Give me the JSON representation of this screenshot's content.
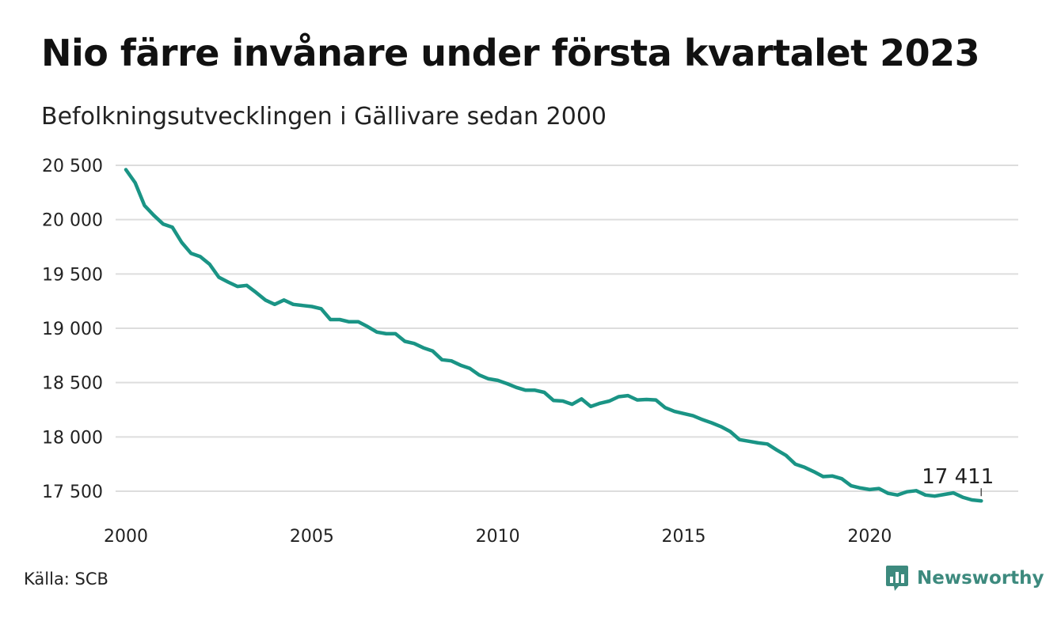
{
  "title": "Nio färre invånare under första kvartalet 2023",
  "subtitle": "Befolkningsutvecklingen i Gällivare sedan 2000",
  "source": "Källa: SCB",
  "brand": {
    "name": "Newsworthy",
    "icon": "newsworthy-logo-icon",
    "color": "#3d8a7e"
  },
  "colors": {
    "line": "#1a9485",
    "grid": "#dddddd"
  },
  "chart_data": {
    "type": "line",
    "title": "Nio färre invånare under första kvartalet 2023",
    "subtitle": "Befolkningsutvecklingen i Gällivare sedan 2000",
    "xlabel": "",
    "ylabel": "",
    "xlim": [
      2000,
      2023.25
    ],
    "ylim": [
      17450,
      20550
    ],
    "grid": true,
    "x_ticks": [
      2000,
      2005,
      2010,
      2015,
      2020
    ],
    "x_tick_labels": [
      "2000",
      "2005",
      "2010",
      "2015",
      "2020"
    ],
    "y_ticks": [
      17500,
      18000,
      18500,
      19000,
      19500,
      20000,
      20500
    ],
    "y_tick_labels": [
      "17 500",
      "18 000",
      "18 500",
      "19 000",
      "19 500",
      "20 000",
      "20 500"
    ],
    "end_label": "17 411",
    "series": [
      {
        "x": [
          2000.0,
          2000.25,
          2000.5,
          2000.75,
          2001.0,
          2001.25,
          2001.5,
          2001.75,
          2002.0,
          2002.25,
          2002.5,
          2002.75,
          2003.0,
          2003.25,
          2003.5,
          2003.75,
          2004.0,
          2004.25,
          2004.5,
          2004.75,
          2005.0,
          2005.25,
          2005.5,
          2005.75,
          2006.0,
          2006.25,
          2006.5,
          2006.75,
          2007.0,
          2007.25,
          2007.5,
          2007.75,
          2008.0,
          2008.25,
          2008.5,
          2008.75,
          2009.0,
          2009.25,
          2009.5,
          2009.75,
          2010.0,
          2010.25,
          2010.5,
          2010.75,
          2011.0,
          2011.25,
          2011.5,
          2011.75,
          2012.0,
          2012.25,
          2012.5,
          2012.75,
          2013.0,
          2013.25,
          2013.5,
          2013.75,
          2014.0,
          2014.25,
          2014.5,
          2014.75,
          2015.0,
          2015.25,
          2015.5,
          2015.75,
          2016.0,
          2016.25,
          2016.5,
          2016.75,
          2017.0,
          2017.25,
          2017.5,
          2017.75,
          2018.0,
          2018.25,
          2018.5,
          2018.75,
          2019.0,
          2019.25,
          2019.5,
          2019.75,
          2020.0,
          2020.25,
          2020.5,
          2020.75,
          2021.0,
          2021.25,
          2021.5,
          2021.75,
          2022.0,
          2022.25,
          2022.5,
          2022.75,
          2023.0
        ],
        "values": [
          20460,
          20340,
          20130,
          20040,
          19960,
          19930,
          19790,
          19690,
          19660,
          19590,
          19470,
          19425,
          19385,
          19395,
          19330,
          19260,
          19220,
          19260,
          19220,
          19210,
          19200,
          19180,
          19080,
          19080,
          19060,
          19060,
          19015,
          18965,
          18950,
          18950,
          18880,
          18860,
          18820,
          18790,
          18710,
          18700,
          18660,
          18630,
          18570,
          18535,
          18520,
          18490,
          18455,
          18430,
          18430,
          18410,
          18335,
          18330,
          18300,
          18350,
          18280,
          18310,
          18330,
          18370,
          18380,
          18340,
          18345,
          18340,
          18270,
          18235,
          18215,
          18195,
          18160,
          18130,
          18095,
          18050,
          17975,
          17960,
          17945,
          17935,
          17880,
          17830,
          17750,
          17720,
          17680,
          17635,
          17640,
          17615,
          17550,
          17530,
          17515,
          17525,
          17480,
          17465,
          17495,
          17505,
          17465,
          17455,
          17470,
          17485,
          17445,
          17420,
          17411
        ]
      }
    ]
  }
}
